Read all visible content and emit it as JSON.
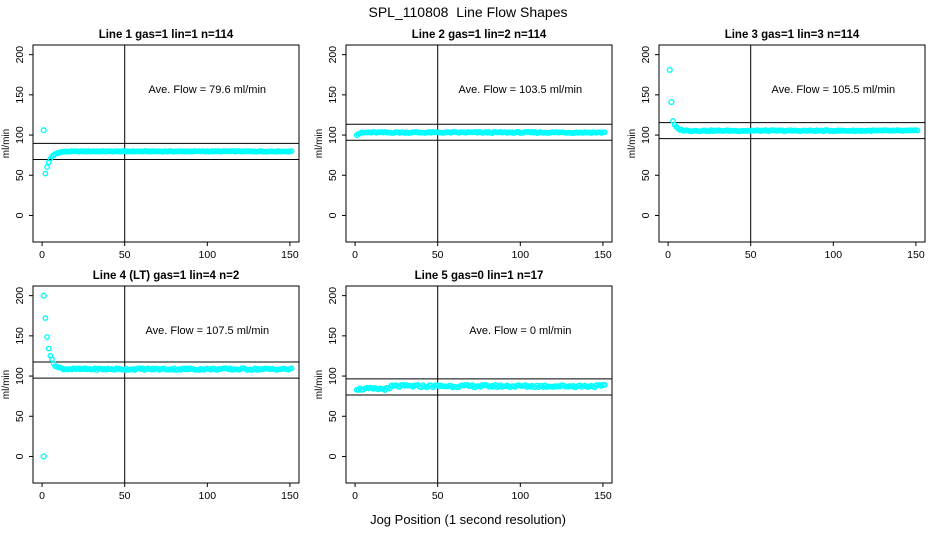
{
  "figure": {
    "title": "SPL_110808  Line Flow Shapes",
    "xlabel": "Jog Position (1 second resolution)"
  },
  "colors": {
    "points": "#00FFFF",
    "axis": "#000000",
    "background": "#FFFFFF",
    "text": "#000000"
  },
  "chart_data": [
    {
      "type": "scatter",
      "title": "Line 1 gas=1 lin=1 n=114",
      "annotation": "Ave. Flow =  79.6  ml/min",
      "ave_flow_ml_min": 79.6,
      "ylabel": "ml/min",
      "xticks": [
        0,
        50,
        100,
        150
      ],
      "yticks": [
        0,
        50,
        100,
        150,
        200
      ],
      "xlim": [
        -5.5,
        155.5
      ],
      "ylim": [
        -33,
        212
      ],
      "vline_x": 50,
      "hlines": [
        89.6,
        69.6
      ],
      "annotation_pos": [
        100,
        152
      ],
      "outliers": [
        [
          1,
          106
        ]
      ],
      "trend": {
        "x_start": 2,
        "x_end": 151,
        "step": 1,
        "start_y": 52,
        "plateau": 79.7,
        "rate": 2.8,
        "noise": 0.5,
        "seed": 1
      }
    },
    {
      "type": "scatter",
      "title": "Line 2 gas=1 lin=2 n=114",
      "annotation": "Ave. Flow =  103.5  ml/min",
      "ave_flow_ml_min": 103.5,
      "ylabel": "ml/min",
      "xticks": [
        0,
        50,
        100,
        150
      ],
      "yticks": [
        0,
        50,
        100,
        150,
        200
      ],
      "xlim": [
        -5.5,
        155.5
      ],
      "ylim": [
        -33,
        212
      ],
      "vline_x": 50,
      "hlines": [
        113.5,
        93.5
      ],
      "annotation_pos": [
        100,
        152
      ],
      "outliers": [],
      "trend": {
        "x_start": 1,
        "x_end": 151,
        "step": 1,
        "start_y": 100.5,
        "plateau": 103.2,
        "rate": 2.0,
        "noise": 0.8,
        "seed": 2
      }
    },
    {
      "type": "scatter",
      "title": "Line 3 gas=1 lin=3 n=114",
      "annotation": "Ave. Flow =  105.5  ml/min",
      "ave_flow_ml_min": 105.5,
      "ylabel": "ml/min",
      "xticks": [
        0,
        50,
        100,
        150
      ],
      "yticks": [
        0,
        50,
        100,
        150,
        200
      ],
      "xlim": [
        -5.5,
        155.5
      ],
      "ylim": [
        -33,
        212
      ],
      "vline_x": 50,
      "hlines": [
        115.5,
        95.5
      ],
      "annotation_pos": [
        100,
        152
      ],
      "outliers": [
        [
          1,
          181
        ],
        [
          2,
          141
        ]
      ],
      "trend": {
        "x_start": 3,
        "x_end": 151,
        "step": 1,
        "start_y": 117,
        "plateau": 105.4,
        "rate": 2.0,
        "noise": 0.7,
        "seed": 3
      }
    },
    {
      "type": "scatter",
      "title": "Line 4 (LT) gas=1 lin=4 n=2",
      "annotation": "Ave. Flow =  107.5  ml/min",
      "ave_flow_ml_min": 107.5,
      "ylabel": "ml/min",
      "xticks": [
        0,
        50,
        100,
        150
      ],
      "yticks": [
        0,
        50,
        100,
        150,
        200
      ],
      "xlim": [
        -5.5,
        155.5
      ],
      "ylim": [
        -33,
        212
      ],
      "vline_x": 50,
      "hlines": [
        117.5,
        97.5
      ],
      "annotation_pos": [
        100,
        152
      ],
      "outliers": [
        [
          1,
          200
        ],
        [
          1,
          0
        ]
      ],
      "trend": {
        "x_start": 2,
        "x_end": 151,
        "step": 1,
        "start_y": 172,
        "plateau": 108.6,
        "rate": 2.3,
        "noise": 1.2,
        "seed": 4
      }
    },
    {
      "type": "scatter",
      "title": "Line 5 gas=0 lin=1 n=17",
      "annotation": "Ave. Flow =  0  ml/min",
      "ave_flow_ml_min": 0,
      "ylabel": "ml/min",
      "xticks": [
        0,
        50,
        100,
        150
      ],
      "yticks": [
        0,
        50,
        100,
        150,
        200
      ],
      "xlim": [
        -5.5,
        155.5
      ],
      "ylim": [
        -33,
        212
      ],
      "vline_x": 50,
      "hlines": [
        96.5,
        76.5
      ],
      "annotation_pos": [
        100,
        152
      ],
      "outliers": [],
      "trend": {
        "x_start": 1,
        "x_end": 151,
        "step": 1,
        "levels": [
          {
            "x0": 1,
            "x1": 21,
            "y": 84
          },
          {
            "x0": 22,
            "x1": 151,
            "y": 87.5
          }
        ],
        "noise": 1.6,
        "seed": 5
      }
    }
  ]
}
